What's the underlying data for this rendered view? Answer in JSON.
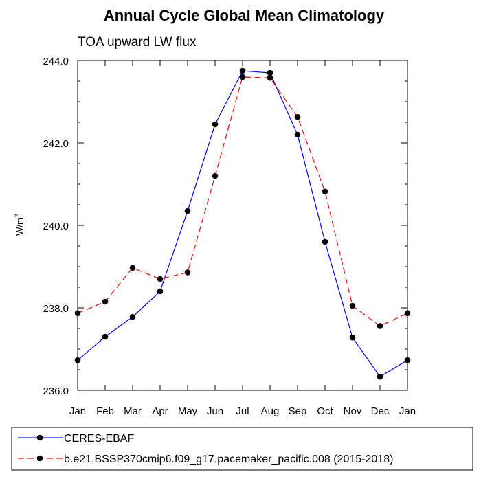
{
  "chart_data": {
    "type": "line",
    "title": "Annual Cycle Global Mean Climatology",
    "subtitle": "TOA upward LW flux",
    "ylabel": "W/m",
    "ylabel_sup": "2",
    "xlabel": "",
    "categories": [
      "Jan",
      "Feb",
      "Mar",
      "Apr",
      "May",
      "Jun",
      "Jul",
      "Aug",
      "Sep",
      "Oct",
      "Nov",
      "Dec",
      "Jan"
    ],
    "ylim": [
      236.0,
      244.0
    ],
    "yticks": [
      "236.0",
      "238.0",
      "240.0",
      "242.0",
      "244.0"
    ],
    "ytick_values": [
      236.0,
      238.0,
      240.0,
      242.0,
      244.0
    ],
    "grid": false,
    "legend_position": "bottom",
    "series": [
      {
        "name": "CERES-EBAF",
        "color": "#0000ff",
        "dash": "solid",
        "marker": "filled-circle",
        "values": [
          236.73,
          237.3,
          237.78,
          238.4,
          240.35,
          242.45,
          243.75,
          243.7,
          242.2,
          239.6,
          237.28,
          236.33,
          236.73
        ]
      },
      {
        "name": "b.e21.BSSP370cmip6.f09_g17.pacemaker_pacific.008 (2015-2018)",
        "color": "#ff0000",
        "dash": "dashed",
        "marker": "filled-circle",
        "values": [
          237.87,
          238.15,
          238.97,
          238.7,
          238.86,
          241.2,
          243.6,
          243.58,
          242.63,
          240.82,
          238.05,
          237.56,
          237.87
        ]
      }
    ]
  }
}
